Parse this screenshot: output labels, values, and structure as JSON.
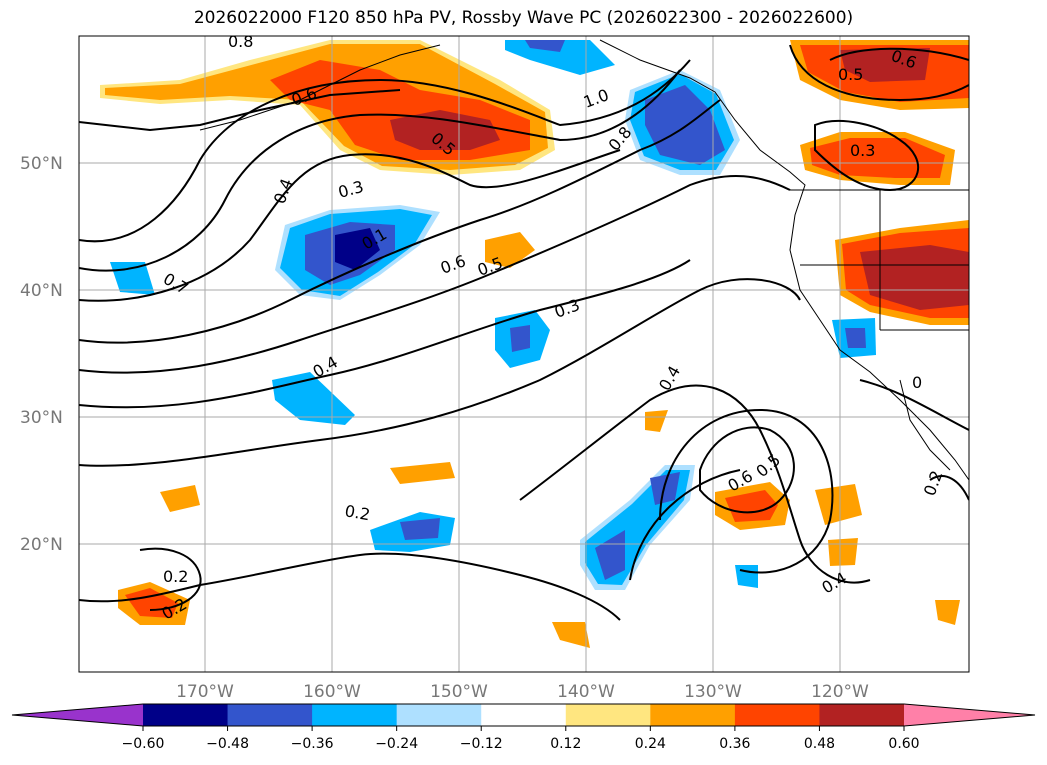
{
  "title": "2026022000 F120 850 hPa PV, Rossby Wave PC (2026022300 - 2026022600)",
  "map": {
    "lat_labels": [
      "50°N",
      "40°N",
      "30°N",
      "20°N"
    ],
    "lon_labels": [
      "170°W",
      "160°W",
      "150°W",
      "140°W",
      "130°W",
      "120°W"
    ],
    "contour_labels": [
      {
        "text": "0.8"
      },
      {
        "text": "0.6"
      },
      {
        "text": "0.5"
      },
      {
        "text": "0.4"
      },
      {
        "text": "0.3"
      },
      {
        "text": "0.1"
      },
      {
        "text": "0.7"
      },
      {
        "text": "0.6"
      },
      {
        "text": "0.5"
      },
      {
        "text": "0.3"
      },
      {
        "text": "0.4"
      },
      {
        "text": "0.4"
      },
      {
        "text": "0.8"
      },
      {
        "text": "1.0"
      },
      {
        "text": "0.6"
      },
      {
        "text": "0.5"
      },
      {
        "text": "0.3"
      },
      {
        "text": "0.2"
      },
      {
        "text": "0.2"
      },
      {
        "text": "0.2"
      },
      {
        "text": "0.6"
      },
      {
        "text": "0.5"
      },
      {
        "text": "0.4"
      },
      {
        "text": "0.2"
      },
      {
        "text": "0"
      }
    ]
  },
  "colorbar": {
    "ticks": [
      "−0.60",
      "−0.48",
      "−0.36",
      "−0.24",
      "−0.12",
      "0.12",
      "0.24",
      "0.36",
      "0.48",
      "0.60"
    ],
    "colors": [
      "#9933cc",
      "#000088",
      "#3355cc",
      "#00b4ff",
      "#aee0ff",
      "#ffffff",
      "#ffe680",
      "#ffa000",
      "#ff4400",
      "#b22222",
      "#ff80a8"
    ]
  }
}
